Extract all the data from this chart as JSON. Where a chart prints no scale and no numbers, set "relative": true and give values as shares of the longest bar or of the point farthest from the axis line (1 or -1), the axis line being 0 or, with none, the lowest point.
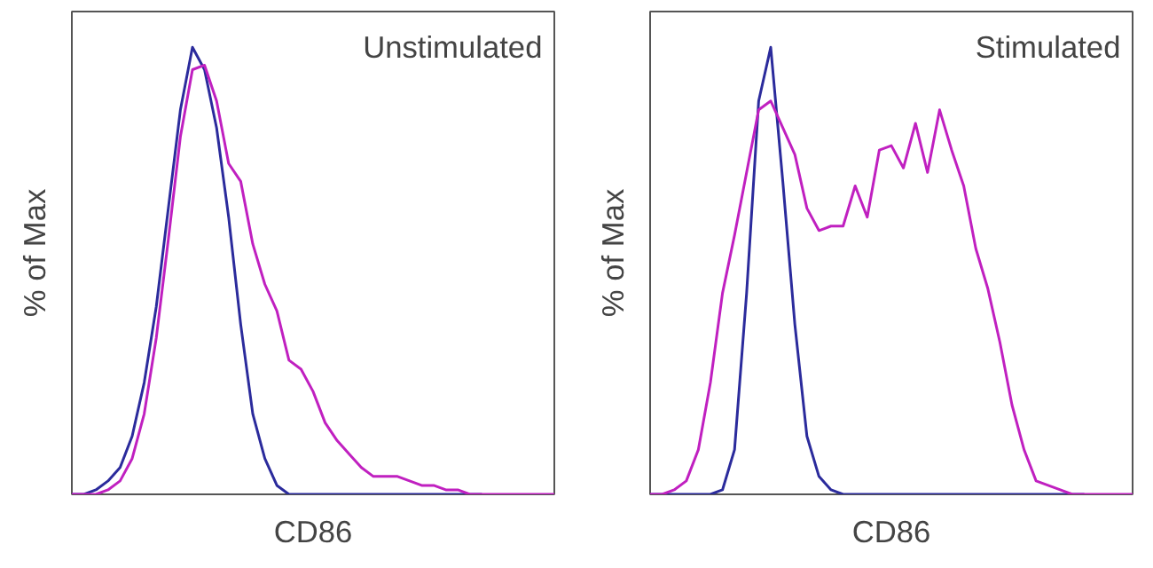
{
  "chart_data": [
    {
      "type": "line",
      "relative": true,
      "xlabel": "CD86",
      "ylabel": "% of Max",
      "annotations": [
        "Unstimulated"
      ],
      "grid": false,
      "marker": "none",
      "line_style": "solid",
      "categories": [
        null,
        null,
        null,
        null,
        null,
        null,
        null,
        null,
        null,
        null,
        null,
        null,
        null,
        null,
        null,
        null,
        null,
        null,
        null,
        null,
        null,
        null,
        null,
        null,
        null,
        null,
        null,
        null,
        null,
        null,
        null,
        null,
        null,
        null,
        null,
        null,
        null,
        null,
        null,
        null,
        null
      ],
      "series": [
        {
          "color": "#2b2b9c",
          "values": [
            0,
            0,
            0.01,
            0.03,
            0.06,
            0.13,
            0.25,
            0.42,
            0.64,
            0.86,
            1.0,
            0.95,
            0.82,
            0.62,
            0.38,
            0.18,
            0.08,
            0.02,
            0,
            0,
            0,
            0,
            0,
            0,
            0,
            0,
            0,
            0,
            0,
            0,
            0,
            0,
            0,
            0,
            0,
            null,
            null,
            null,
            null,
            null,
            null
          ]
        },
        {
          "color": "#c020c0",
          "values": [
            0,
            0,
            0,
            0.01,
            0.03,
            0.08,
            0.18,
            0.35,
            0.57,
            0.8,
            0.95,
            0.96,
            0.88,
            0.74,
            0.7,
            0.56,
            0.47,
            0.41,
            0.3,
            0.28,
            0.23,
            0.16,
            0.12,
            0.09,
            0.06,
            0.04,
            0.04,
            0.04,
            0.03,
            0.02,
            0.02,
            0.01,
            0.01,
            0,
            0,
            0,
            0,
            0,
            0,
            0,
            0
          ]
        }
      ]
    },
    {
      "type": "line",
      "relative": true,
      "xlabel": "CD86",
      "ylabel": "% of Max",
      "annotations": [
        "Stimulated"
      ],
      "grid": false,
      "marker": "none",
      "line_style": "solid",
      "categories": [
        null,
        null,
        null,
        null,
        null,
        null,
        null,
        null,
        null,
        null,
        null,
        null,
        null,
        null,
        null,
        null,
        null,
        null,
        null,
        null,
        null,
        null,
        null,
        null,
        null,
        null,
        null,
        null,
        null,
        null,
        null,
        null,
        null,
        null,
        null,
        null,
        null,
        null,
        null,
        null,
        null
      ],
      "series": [
        {
          "color": "#2b2b9c",
          "values": [
            0,
            0,
            0,
            0,
            0,
            0,
            0.01,
            0.1,
            0.45,
            0.88,
            1.0,
            0.7,
            0.38,
            0.13,
            0.04,
            0.01,
            0,
            0,
            0,
            0,
            0,
            0,
            0,
            0,
            0,
            0,
            0,
            0,
            0,
            0,
            0,
            0,
            0,
            0,
            0,
            0,
            0,
            null,
            null,
            null,
            null
          ]
        },
        {
          "color": "#c020c0",
          "values": [
            0,
            0,
            0.01,
            0.03,
            0.1,
            0.25,
            0.45,
            0.58,
            0.72,
            0.86,
            0.88,
            0.82,
            0.76,
            0.64,
            0.59,
            0.6,
            0.6,
            0.69,
            0.62,
            0.77,
            0.78,
            0.73,
            0.83,
            0.72,
            0.86,
            0.77,
            0.69,
            0.55,
            0.46,
            0.34,
            0.2,
            0.1,
            0.03,
            0.02,
            0.01,
            0,
            0,
            0,
            0,
            0,
            0
          ]
        }
      ]
    }
  ]
}
